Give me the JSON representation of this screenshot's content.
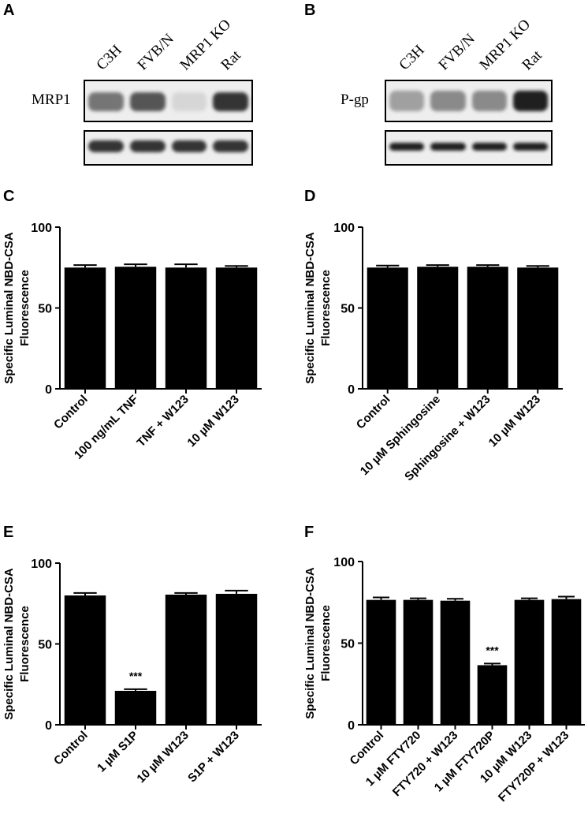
{
  "panels": {
    "a": {
      "letter": "A",
      "lanes": [
        "C3H",
        "FVB/N",
        "MRP1 KO",
        "Rat"
      ],
      "blot_label": "MRP1",
      "upper_band_intensity": [
        0.55,
        0.7,
        0.1,
        0.85
      ],
      "lower_band_intensity": [
        0.85,
        0.85,
        0.85,
        0.85
      ]
    },
    "b": {
      "letter": "B",
      "lanes": [
        "C3H",
        "FVB/N",
        "MRP1 KO",
        "Rat"
      ],
      "blot_label": "P-gp",
      "upper_band_intensity": [
        0.35,
        0.45,
        0.45,
        0.95
      ],
      "lower_band_intensity": [
        0.95,
        0.95,
        0.95,
        0.95
      ]
    }
  },
  "chart_data": [
    {
      "panel": "C",
      "type": "bar",
      "ylabel": "Specific Luminal NBD-CSA\nFluorescence",
      "ylim": [
        0,
        100
      ],
      "yticks": [
        0,
        50,
        100
      ],
      "categories": [
        "Control",
        "100 ng/mL TNF",
        "TNF + W123",
        "10 µM W123"
      ],
      "values": [
        75,
        75.5,
        75,
        75
      ],
      "errors": [
        1.5,
        1.5,
        2,
        1
      ],
      "annotations": [
        "",
        "",
        "",
        ""
      ]
    },
    {
      "panel": "D",
      "type": "bar",
      "ylabel": "Specific Luminal NBD-CSA\nFluorescence",
      "ylim": [
        0,
        100
      ],
      "yticks": [
        0,
        50,
        100
      ],
      "categories": [
        "Control",
        "10 µM Sphingosine",
        "Sphingosine + W123",
        "10 µM W123"
      ],
      "values": [
        75,
        75.5,
        75.5,
        75
      ],
      "errors": [
        1.2,
        1,
        1,
        1
      ],
      "annotations": [
        "",
        "",
        "",
        ""
      ]
    },
    {
      "panel": "E",
      "type": "bar",
      "ylabel": "Specific Luminal NBD-CSA\nFluorescence",
      "ylim": [
        0,
        100
      ],
      "yticks": [
        0,
        50,
        100
      ],
      "categories": [
        "Control",
        "1 µM S1P",
        "10 µM W123",
        "S1P + W123"
      ],
      "values": [
        80,
        21,
        80.5,
        81
      ],
      "errors": [
        1.5,
        1,
        1,
        2
      ],
      "annotations": [
        "",
        "***",
        "",
        ""
      ]
    },
    {
      "panel": "F",
      "type": "bar",
      "ylabel": "Specific Luminal NBD-CSA\nFluorescence",
      "ylim": [
        0,
        100
      ],
      "yticks": [
        0,
        50,
        100
      ],
      "categories": [
        "Control",
        "1 µM FTY720",
        "FTY720 + W123",
        "1 µM FTY720P",
        "10 µM W123",
        "FTY720P + W123"
      ],
      "values": [
        76.5,
        76.5,
        76,
        36.5,
        76.5,
        77
      ],
      "errors": [
        1.5,
        1,
        1.2,
        1,
        1,
        1.5
      ],
      "annotations": [
        "",
        "",
        "",
        "***",
        "",
        ""
      ]
    }
  ]
}
